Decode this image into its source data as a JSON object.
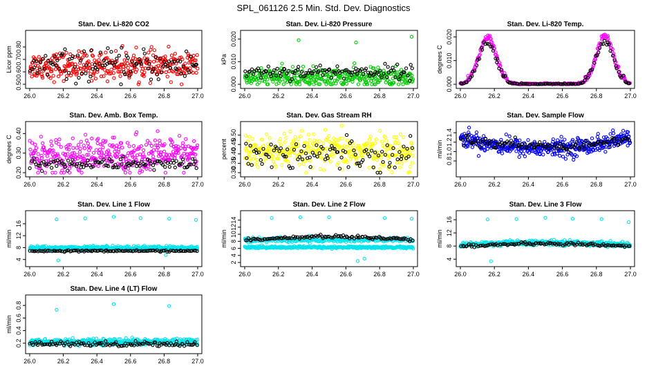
{
  "figure": {
    "title": "SPL_061126  2.5 Min. Std. Dev. Diagnostics"
  },
  "chart_data": [
    {
      "type": "scatter",
      "title": "Stan. Dev. Li-820 CO2",
      "ylabel": "Licor ppm",
      "xlim": [
        26.0,
        27.0
      ],
      "ylim": [
        0.5,
        0.9
      ],
      "x_ticks": [
        "26.0",
        "26.2",
        "26.4",
        "26.6",
        "26.8",
        "27.0"
      ],
      "y_ticks": [
        "0.50",
        "0.60",
        "0.70",
        "0.80"
      ],
      "series": [
        {
          "color": "#ff0000",
          "pattern": "noise",
          "center": 0.65,
          "spread": 0.055,
          "count": 360
        },
        {
          "color": "#000000",
          "pattern": "noise",
          "center": 0.65,
          "spread": 0.06,
          "count": 110
        }
      ]
    },
    {
      "type": "scatter",
      "title": "Stan. Dev. Li-820 Pressure",
      "ylabel": "kPa",
      "xlim": [
        26.0,
        27.0
      ],
      "ylim": [
        0.0,
        0.022
      ],
      "x_ticks": [
        "26.0",
        "26.2",
        "26.4",
        "26.6",
        "26.8",
        "27.0"
      ],
      "y_ticks": [
        "0.000",
        "0.010",
        "0.020"
      ],
      "series": [
        {
          "color": "#00cc00",
          "pattern": "noise",
          "center": 0.003,
          "spread": 0.002,
          "count": 380
        },
        {
          "color": "#000000",
          "pattern": "noise",
          "center": 0.0055,
          "spread": 0.0015,
          "count": 110
        }
      ],
      "outliers": [
        {
          "x": 26.32,
          "y": 0.0195,
          "color": "#00cc00"
        },
        {
          "x": 26.66,
          "y": 0.0185,
          "color": "#00cc00"
        },
        {
          "x": 26.99,
          "y": 0.021,
          "color": "#00cc00"
        }
      ]
    },
    {
      "type": "scatter",
      "title": "Stan. Dev. Li-820 Temp.",
      "ylabel": "degrees C",
      "xlim": [
        26.0,
        27.0
      ],
      "ylim": [
        0.0,
        0.021
      ],
      "x_ticks": [
        "26.0",
        "26.2",
        "26.4",
        "26.6",
        "26.8",
        "27.0"
      ],
      "y_ticks": [
        "0.000",
        "0.010",
        "0.020"
      ],
      "series": [
        {
          "color": "#ff00ff",
          "pattern": "twin_peaks",
          "peaks": [
            26.16,
            26.85
          ],
          "height": 0.019,
          "width": 0.07,
          "baseline": 0.0,
          "spread": 0.0012,
          "count": 320
        },
        {
          "color": "#000000",
          "pattern": "twin_peaks",
          "peaks": [
            26.16,
            26.85
          ],
          "height": 0.017,
          "width": 0.07,
          "baseline": 0.0,
          "spread": 0.001,
          "count": 110
        }
      ]
    },
    {
      "type": "scatter",
      "title": "Stan. Dev. Amb. Box Temp.",
      "ylabel": "degrees C",
      "xlim": [
        26.0,
        27.0
      ],
      "ylim": [
        0.2,
        0.44
      ],
      "x_ticks": [
        "26.0",
        "26.2",
        "26.4",
        "26.6",
        "26.8",
        "27.0"
      ],
      "y_ticks": [
        "0.20",
        "0.30",
        "0.40"
      ],
      "series": [
        {
          "color": "#ff00ff",
          "pattern": "noise",
          "center": 0.29,
          "spread": 0.045,
          "count": 380
        },
        {
          "color": "#000000",
          "pattern": "noise",
          "center": 0.245,
          "spread": 0.015,
          "count": 110
        }
      ]
    },
    {
      "type": "scatter",
      "title": "Stan. Dev. Gas Stream RH",
      "ylabel": "percent",
      "xlim": [
        26.0,
        27.0
      ],
      "ylim": [
        0.3,
        0.55
      ],
      "x_ticks": [
        "26.0",
        "26.2",
        "26.4",
        "26.6",
        "26.8",
        "27.0"
      ],
      "y_ticks": [
        "0.30",
        "0.35",
        "0.40",
        "0.45",
        "0.50"
      ],
      "series": [
        {
          "color": "#ffff00",
          "pattern": "noise",
          "center": 0.41,
          "spread": 0.045,
          "count": 380
        },
        {
          "color": "#000000",
          "pattern": "noise",
          "center": 0.4,
          "spread": 0.04,
          "count": 100
        }
      ]
    },
    {
      "type": "scatter",
      "title": "Stan. Dev. Sample Flow",
      "ylabel": "ml/min",
      "xlim": [
        26.0,
        27.0
      ],
      "ylim": [
        0.55,
        1.55
      ],
      "x_ticks": [
        "26.0",
        "26.2",
        "26.4",
        "26.6",
        "26.8",
        "27.0"
      ],
      "y_ticks": [
        "0.8",
        "1.0",
        "1.2",
        "1.4"
      ],
      "series": [
        {
          "color": "#0000ff",
          "pattern": "valley",
          "edge": 1.3,
          "middle": 1.07,
          "spread": 0.09,
          "count": 420
        },
        {
          "color": "#000000",
          "pattern": "valley",
          "edge": 1.28,
          "middle": 1.1,
          "spread": 0.05,
          "count": 110
        }
      ]
    },
    {
      "type": "scatter",
      "title": "Stan. Dev. Line 1 Flow",
      "ylabel": "ml/min",
      "xlim": [
        26.0,
        27.0
      ],
      "ylim": [
        3.0,
        19.0
      ],
      "x_ticks": [
        "26.0",
        "26.2",
        "26.4",
        "26.6",
        "26.8",
        "27.0"
      ],
      "y_ticks": [
        "4",
        "8",
        "12",
        "16"
      ],
      "series": [
        {
          "color": "#00e5ee",
          "pattern": "band",
          "center": 7.8,
          "spread": 0.35,
          "count": 420
        },
        {
          "color": "#000000",
          "pattern": "band",
          "center": 6.9,
          "spread": 0.12,
          "count": 110
        }
      ],
      "outliers": [
        {
          "x": 26.16,
          "y": 17.5,
          "color": "#00e5ee"
        },
        {
          "x": 26.33,
          "y": 17.8,
          "color": "#00e5ee"
        },
        {
          "x": 26.5,
          "y": 18.3,
          "color": "#00e5ee"
        },
        {
          "x": 26.66,
          "y": 17.9,
          "color": "#00e5ee"
        },
        {
          "x": 26.83,
          "y": 17.7,
          "color": "#00e5ee"
        },
        {
          "x": 26.99,
          "y": 17.3,
          "color": "#00e5ee"
        },
        {
          "x": 26.17,
          "y": 3.7,
          "color": "#00e5ee"
        },
        {
          "x": 26.81,
          "y": 5.5,
          "color": "#00e5ee"
        }
      ]
    },
    {
      "type": "scatter",
      "title": "Stan. Dev. Line 2 Flow",
      "ylabel": "ml/min",
      "xlim": [
        26.0,
        27.0
      ],
      "ylim": [
        2.0,
        15.5
      ],
      "x_ticks": [
        "26.0",
        "26.2",
        "26.4",
        "26.6",
        "26.8",
        "27.0"
      ],
      "y_ticks": [
        "2",
        "4",
        "6",
        "8",
        "10",
        "12",
        "14"
      ],
      "series": [
        {
          "color": "#00e5ee",
          "pattern": "band",
          "center": 6.3,
          "spread": 0.15,
          "count": 300
        },
        {
          "color": "#00e5ee",
          "pattern": "band",
          "center": 8.4,
          "spread": 0.35,
          "count": 260
        },
        {
          "color": "#000000",
          "pattern": "hump",
          "edge": 8.3,
          "middle": 9.3,
          "spread": 0.2,
          "count": 110
        }
      ],
      "outliers": [
        {
          "x": 26.16,
          "y": 14.6,
          "color": "#00e5ee"
        },
        {
          "x": 26.33,
          "y": 14.8,
          "color": "#00e5ee"
        },
        {
          "x": 26.5,
          "y": 14.8,
          "color": "#00e5ee"
        },
        {
          "x": 26.83,
          "y": 14.6,
          "color": "#00e5ee"
        },
        {
          "x": 26.99,
          "y": 14.4,
          "color": "#00e5ee"
        },
        {
          "x": 26.67,
          "y": 2.4,
          "color": "#00e5ee"
        },
        {
          "x": 26.71,
          "y": 3.1,
          "color": "#00e5ee"
        }
      ]
    },
    {
      "type": "scatter",
      "title": "Stan. Dev. Line 3 Flow",
      "ylabel": "ml/min",
      "xlim": [
        26.0,
        27.0
      ],
      "ylim": [
        3.0,
        17.5
      ],
      "x_ticks": [
        "26.0",
        "26.2",
        "26.4",
        "26.6",
        "26.8",
        "27.0"
      ],
      "y_ticks": [
        "4",
        "8",
        "12",
        "16"
      ],
      "series": [
        {
          "color": "#00e5ee",
          "pattern": "hump",
          "edge": 8.3,
          "middle": 9.0,
          "spread": 0.35,
          "count": 420
        },
        {
          "color": "#000000",
          "pattern": "hump",
          "edge": 7.9,
          "middle": 8.7,
          "spread": 0.2,
          "count": 110
        }
      ],
      "outliers": [
        {
          "x": 26.16,
          "y": 16.1,
          "color": "#00e5ee"
        },
        {
          "x": 26.33,
          "y": 16.2,
          "color": "#00e5ee"
        },
        {
          "x": 26.5,
          "y": 16.6,
          "color": "#00e5ee"
        },
        {
          "x": 26.66,
          "y": 16.3,
          "color": "#00e5ee"
        },
        {
          "x": 26.83,
          "y": 16.2,
          "color": "#00e5ee"
        },
        {
          "x": 26.99,
          "y": 15.3,
          "color": "#00e5ee"
        },
        {
          "x": 26.18,
          "y": 3.4,
          "color": "#00e5ee"
        }
      ]
    },
    {
      "type": "scatter",
      "title": "Stan. Dev. Line 4 (LT) Flow",
      "ylabel": "ml/min",
      "xlim": [
        26.0,
        27.0
      ],
      "ylim": [
        0.1,
        0.9
      ],
      "x_ticks": [
        "26.0",
        "26.2",
        "26.4",
        "26.6",
        "26.8",
        "27.0"
      ],
      "y_ticks": [
        "0.2",
        "0.4",
        "0.6",
        "0.8"
      ],
      "series": [
        {
          "color": "#00e5ee",
          "pattern": "band",
          "center": 0.22,
          "spread": 0.025,
          "count": 420
        },
        {
          "color": "#000000",
          "pattern": "band",
          "center": 0.19,
          "spread": 0.02,
          "count": 110
        }
      ],
      "outliers": [
        {
          "x": 26.16,
          "y": 0.73,
          "color": "#00e5ee"
        },
        {
          "x": 26.5,
          "y": 0.82,
          "color": "#00e5ee"
        },
        {
          "x": 26.83,
          "y": 0.79,
          "color": "#00e5ee"
        }
      ]
    }
  ]
}
